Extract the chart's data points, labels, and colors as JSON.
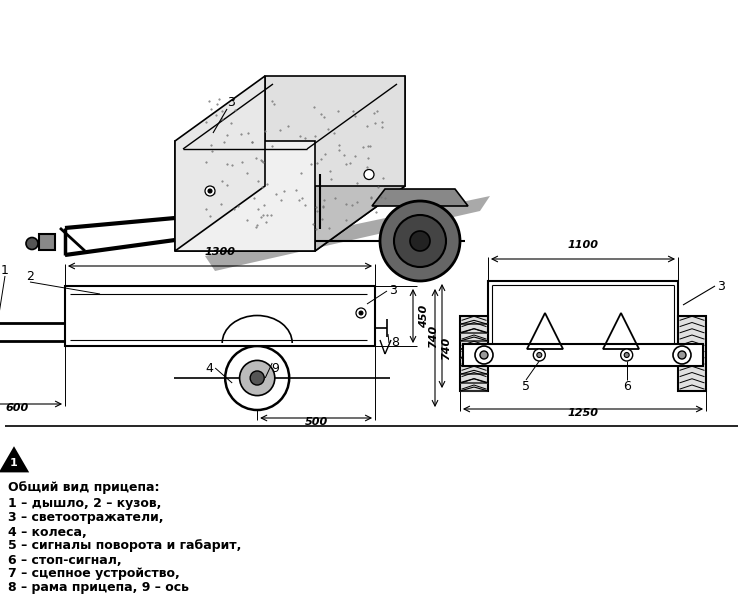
{
  "background_color": "#ffffff",
  "figure_width": 7.43,
  "figure_height": 6.01,
  "legend_lines": [
    "Общий вид прицепа:",
    "1 – дышло, 2 – кузов,",
    "3 – светоотражатели,",
    "4 – колеса,",
    "5 – сигналы поворота и габарит,",
    "6 – стоп-сигнал,",
    "7 – сцепное устройство,",
    "8 – рама прицепа, 9 – ось"
  ]
}
